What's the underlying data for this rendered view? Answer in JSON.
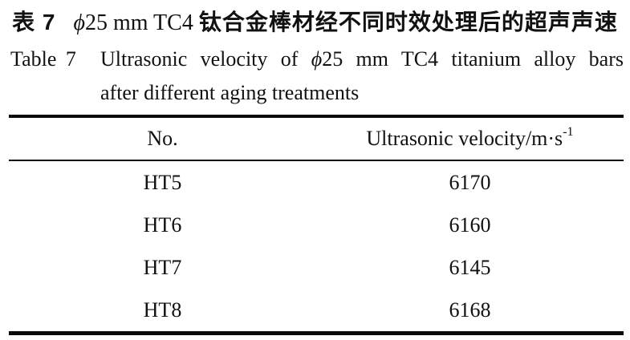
{
  "caption_zh": {
    "label": "表 7",
    "phi": "ϕ",
    "latin": "25 mm TC4 ",
    "text": "钛合金棒材经不同时效处理后的超声声速"
  },
  "caption_en": {
    "label": "Table 7",
    "line1_before_phi": "Ultrasonic velocity of",
    "phi": "ϕ",
    "line1_after_phi": "25 mm TC4 titanium alloy bars",
    "line2": "after different aging treatments"
  },
  "table": {
    "col_no_header": "No.",
    "col_velocity_header": "Ultrasonic velocity/m·s",
    "col_velocity_superscript": "-1",
    "rows": [
      {
        "no": "HT5",
        "velocity": "6170"
      },
      {
        "no": "HT6",
        "velocity": "6160"
      },
      {
        "no": "HT7",
        "velocity": "6145"
      },
      {
        "no": "HT8",
        "velocity": "6168"
      }
    ]
  }
}
